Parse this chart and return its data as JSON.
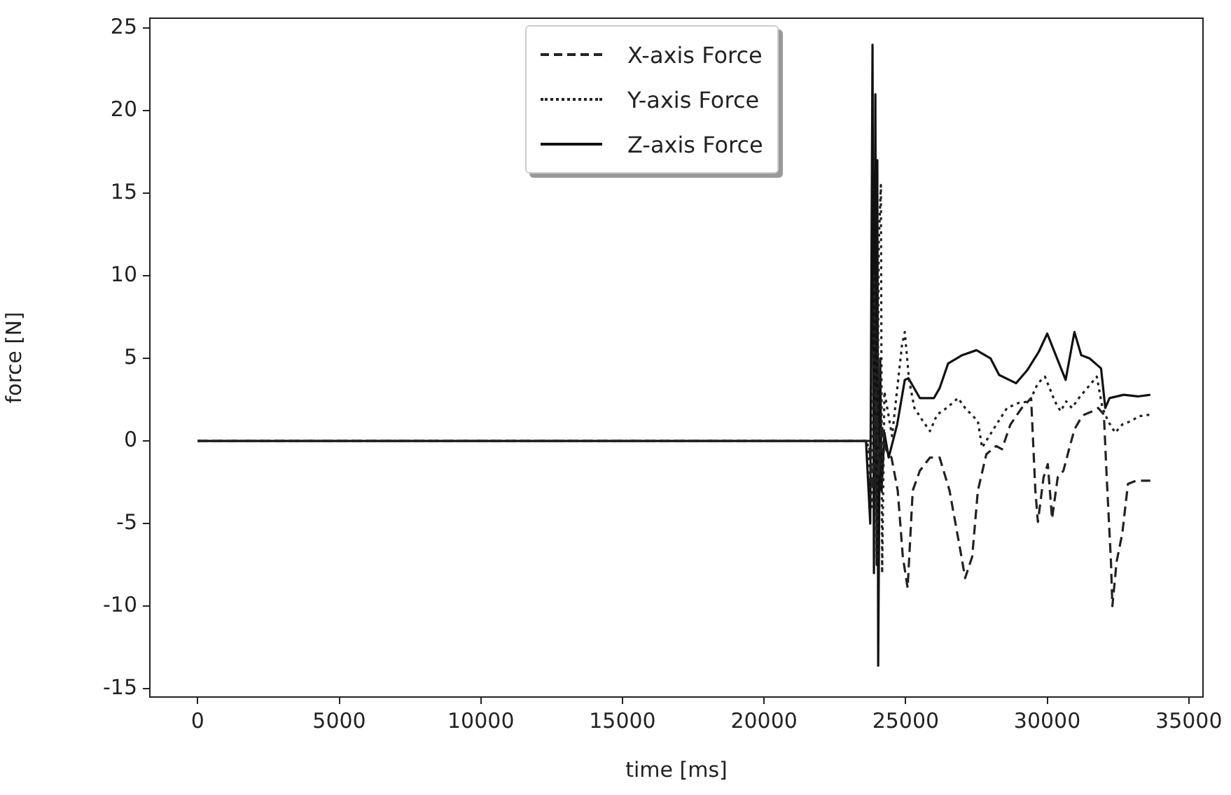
{
  "chart_data": {
    "type": "line",
    "xlabel": "time [ms]",
    "ylabel": "force [N]",
    "xlim": [
      -1690,
      35500
    ],
    "ylim": [
      -15.5,
      25.6
    ],
    "xticks": [
      0,
      5000,
      10000,
      15000,
      20000,
      25000,
      30000,
      35000
    ],
    "yticks": [
      -15,
      -10,
      -5,
      0,
      5,
      10,
      15,
      20,
      25
    ],
    "grid": false,
    "legend": "top",
    "marker": "none",
    "series": [
      {
        "name": "X-axis Force",
        "color": "#222222",
        "line_style": "dashed",
        "x": [
          0,
          23700,
          23850,
          23950,
          24050,
          24150,
          24300,
          24500,
          24720,
          24900,
          25070,
          25250,
          25500,
          25860,
          26200,
          26550,
          26950,
          27100,
          27350,
          27550,
          27850,
          28200,
          28400,
          28700,
          29100,
          29430,
          29580,
          29670,
          29870,
          30020,
          30170,
          30370,
          30570,
          30770,
          30960,
          31160,
          31310,
          31600,
          31800,
          32000,
          32100,
          32250,
          32300,
          32450,
          32650,
          32850,
          33140,
          33640
        ],
        "values": [
          0,
          0,
          -3,
          3,
          -2,
          1,
          -0.5,
          -1,
          -3,
          -7,
          -8.9,
          -3,
          -1.8,
          -1,
          -1,
          -3,
          -6.8,
          -8.3,
          -7,
          -3,
          -0.8,
          -0.3,
          -0.5,
          1,
          2,
          2.6,
          -3,
          -4.9,
          -2.2,
          -1.4,
          -4.7,
          -2.2,
          -1.8,
          -0.5,
          0.7,
          1.3,
          1.6,
          1.8,
          2,
          1.6,
          -2.2,
          -7.3,
          -10,
          -7.3,
          -5.6,
          -2.6,
          -2.4,
          -2.4
        ]
      },
      {
        "name": "Y-axis Force",
        "color": "#222222",
        "line_style": "dotted",
        "x": [
          0,
          23650,
          23800,
          23900,
          23980,
          24050,
          24125,
          24170,
          24250,
          24520,
          24870,
          24970,
          25120,
          25310,
          25610,
          25860,
          26110,
          26450,
          26850,
          27100,
          27550,
          27700,
          27950,
          28280,
          28580,
          28980,
          29380,
          29670,
          29920,
          30270,
          30470,
          30670,
          30870,
          31160,
          31460,
          31750,
          31950,
          32150,
          32400,
          32650,
          32950,
          33240,
          33640
        ],
        "values": [
          0,
          0,
          -4,
          10,
          -7,
          12,
          15.5,
          -8,
          3,
          0.3,
          5.8,
          6.6,
          3.7,
          2,
          1.2,
          0.6,
          1.6,
          2,
          2.6,
          2,
          1.2,
          -0.4,
          0.3,
          1.2,
          2,
          2.3,
          2.4,
          3.5,
          3.9,
          2.4,
          1.8,
          2.4,
          2,
          2.7,
          3.3,
          3.9,
          2,
          1.2,
          0.5,
          1,
          1.2,
          1.5,
          1.6
        ]
      },
      {
        "name": "Z-axis Force",
        "color": "#111111",
        "line_style": "solid",
        "x": [
          0,
          23600,
          23750,
          23830,
          23880,
          23930,
          23980,
          24000,
          24030,
          24100,
          24150,
          24250,
          24400,
          24700,
          24970,
          25100,
          25500,
          26000,
          26200,
          26500,
          27000,
          27500,
          28000,
          28300,
          28900,
          29300,
          29700,
          30000,
          30300,
          30650,
          30960,
          31200,
          31500,
          31900,
          32050,
          32200,
          32700,
          33200,
          33640
        ],
        "values": [
          0,
          0,
          -5,
          24,
          -8,
          21,
          -7.5,
          17,
          -13.6,
          5,
          -3,
          0.5,
          -1,
          1,
          3.7,
          3.8,
          2.6,
          2.6,
          3.2,
          4.7,
          5.2,
          5.5,
          5,
          4,
          3.5,
          4.3,
          5.4,
          6.5,
          5.2,
          3.7,
          6.6,
          5.2,
          5,
          4.4,
          2,
          2.6,
          2.8,
          2.7,
          2.8
        ]
      }
    ]
  }
}
